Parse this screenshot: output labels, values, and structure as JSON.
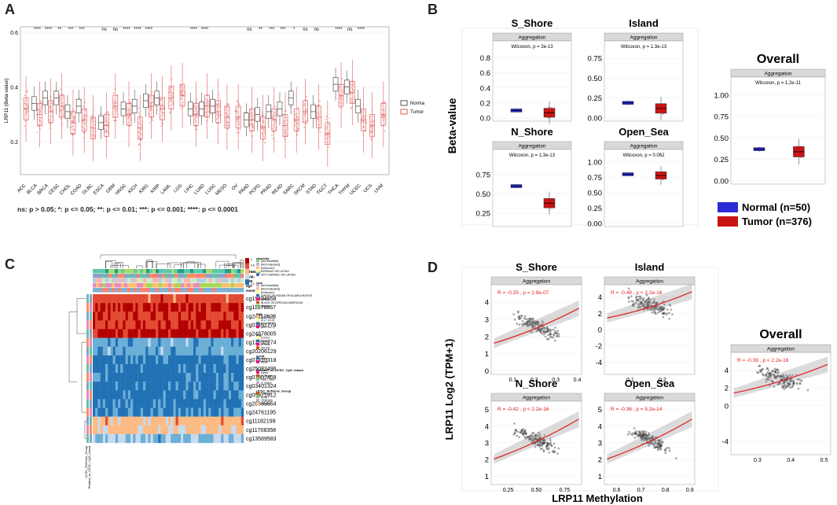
{
  "panel_labels": {
    "a": "A",
    "b": "B",
    "c": "C",
    "d": "D"
  },
  "colors": {
    "normal": "#7f8c8d",
    "tumor": "#e05a5a",
    "b_normal": "#2b2bd6",
    "b_tumor": "#c81414",
    "strip": "#d9d9d9",
    "heat_hi": "#d7301f",
    "heat_mid": "#fdd49e",
    "heat_lo": "#4575b4"
  },
  "panel_a": {
    "ylabel": "LRP11 (Beta-value)",
    "yticks": [
      "0.6",
      "0.4",
      "0.2"
    ],
    "legend": {
      "normal": "Normal",
      "tumor": "Tumor"
    },
    "footnote": "ns: p > 0.05; *: p <= 0.05; **: p <= 0.01; ***: p <= 0.001; ****: p <= 0.0001",
    "cancers": [
      "ACC",
      "BLCA",
      "BRCA",
      "CESC",
      "CHOL",
      "COAD",
      "DLBC",
      "ESCA",
      "GBM",
      "HNSC",
      "KICH",
      "KIRC",
      "KIRP",
      "LAML",
      "LGG",
      "LIHC",
      "LUAD",
      "LUSC",
      "MESO",
      "OV",
      "PAAD",
      "PCPG",
      "PRAD",
      "READ",
      "SARC",
      "SKCM",
      "STAD",
      "TGCT",
      "THCA",
      "THYM",
      "UCEC",
      "UCS",
      "UVM"
    ],
    "signif": [
      "",
      "****",
      "****",
      "**",
      "***",
      "***",
      "",
      "ns",
      "ns",
      "****",
      "****",
      "****",
      "",
      "",
      "",
      "****",
      "****",
      "",
      "",
      "",
      "ns",
      "**",
      "***",
      "***",
      "*",
      "ns",
      "ns",
      "",
      "****",
      "ns",
      "****",
      "",
      ""
    ]
  },
  "chart_data": [
    {
      "type": "box",
      "id": "A",
      "ylabel": "LRP11 (Beta-value)",
      "ylim": [
        0.08,
        0.62
      ],
      "categories": [
        "ACC",
        "BLCA",
        "BRCA",
        "CESC",
        "CHOL",
        "COAD",
        "DLBC",
        "ESCA",
        "GBM",
        "HNSC",
        "KICH",
        "KIRC",
        "KIRP",
        "LAML",
        "LGG",
        "LIHC",
        "LUAD",
        "LUSC",
        "MESO",
        "OV",
        "PAAD",
        "PCPG",
        "PRAD",
        "READ",
        "SARC",
        "SKCM",
        "STAD",
        "TGCT",
        "THCA",
        "THYM",
        "UCEC",
        "UCS",
        "UVM"
      ],
      "series": [
        {
          "name": "Normal",
          "medians": [
            null,
            0.34,
            0.36,
            0.36,
            0.31,
            0.33,
            null,
            0.27,
            null,
            0.32,
            0.33,
            0.35,
            0.36,
            null,
            null,
            0.32,
            0.32,
            0.33,
            null,
            null,
            0.28,
            0.3,
            0.31,
            0.32,
            0.36,
            null,
            0.31,
            null,
            0.41,
            0.4,
            0.33,
            null,
            null
          ]
        },
        {
          "name": "Tumor",
          "medians": [
            0.32,
            0.3,
            0.31,
            0.33,
            0.27,
            0.28,
            0.25,
            0.26,
            0.33,
            0.3,
            0.25,
            0.33,
            0.32,
            0.36,
            0.37,
            0.3,
            0.33,
            0.31,
            0.29,
            0.29,
            0.28,
            0.25,
            0.28,
            0.26,
            0.28,
            0.31,
            0.29,
            0.23,
            0.37,
            0.38,
            0.28,
            0.26,
            0.3
          ]
        }
      ]
    },
    {
      "type": "box",
      "id": "B-S_Shore",
      "title": "S_Shore",
      "strip": "Aggregation",
      "stat": "Wilcoxon, p = 3e-13",
      "categories": [
        "Normal",
        "Tumor"
      ],
      "medians": [
        0.1,
        0.07
      ],
      "ylim": [
        0,
        0.9
      ],
      "yticks": [
        "0.8",
        "0.6",
        "0.4",
        "0.2",
        "0.0"
      ]
    },
    {
      "type": "box",
      "id": "B-Island",
      "title": "Island",
      "strip": "Aggregation",
      "stat": "Wilcoxon, p = 1.3e-13",
      "categories": [
        "Normal",
        "Tumor"
      ],
      "medians": [
        0.19,
        0.12
      ],
      "ylim": [
        0,
        0.85
      ],
      "yticks": [
        "0.75",
        "0.50",
        "0.25",
        "0.00"
      ]
    },
    {
      "type": "box",
      "id": "B-N_Shore",
      "title": "N_Shore",
      "strip": "Aggregation",
      "stat": "Wilcoxon, p = 1.3e-13",
      "categories": [
        "Normal",
        "Tumor"
      ],
      "medians": [
        0.6,
        0.38
      ],
      "ylim": [
        0.12,
        0.95
      ],
      "yticks": [
        "0.75",
        "0.50",
        "0.25"
      ]
    },
    {
      "type": "box",
      "id": "B-Open_Sea",
      "title": "Open_Sea",
      "strip": "Aggregation",
      "stat": "Wilcoxon, p = 0.062",
      "categories": [
        "Normal",
        "Tumor"
      ],
      "medians": [
        0.8,
        0.78
      ],
      "ylim": [
        0,
        1.05
      ],
      "yticks": [
        "1.00",
        "0.75",
        "0.50",
        "0.25",
        "0.00"
      ]
    },
    {
      "type": "box",
      "id": "B-Overall",
      "title": "Overall",
      "strip": "Aggregation",
      "stat": "Wilcoxon, p = 1.2e-11",
      "categories": [
        "Normal",
        "Tumor"
      ],
      "medians": [
        0.37,
        0.34
      ],
      "ylim": [
        0,
        1.1
      ],
      "yticks": [
        "1.00",
        "0.75",
        "0.50",
        "0.25",
        "0.00"
      ]
    },
    {
      "type": "scatter",
      "id": "D-S_Shore",
      "title": "S_Shore",
      "strip": "Aggregation",
      "stat": "R = -0.25 , p = 2.9e-07",
      "xticks": [
        "0.1",
        "0.2",
        "0.3",
        "0.4"
      ],
      "xlim": [
        0.0,
        0.42
      ],
      "yticks": [
        "4",
        "3",
        "2",
        "1",
        "0"
      ],
      "ylim": [
        -0.2,
        5
      ]
    },
    {
      "type": "scatter",
      "id": "D-Island",
      "title": "Island",
      "strip": "Aggregation",
      "stat": "R = -0.49 , p < 2.2e-16",
      "xticks": [
        "0.1",
        "0.2"
      ],
      "xlim": [
        0.02,
        0.3
      ],
      "yticks": [
        "4",
        "2",
        "0",
        "-2",
        "-4"
      ],
      "ylim": [
        -5.5,
        5.5
      ]
    },
    {
      "type": "scatter",
      "id": "D-N_Shore",
      "title": "N_Shore",
      "strip": "Aggregation",
      "stat": "R = -0.42 , p < 2.2e-16",
      "xticks": [
        "0.25",
        "0.50",
        "0.75"
      ],
      "xlim": [
        0.1,
        0.9
      ],
      "yticks": [
        "5",
        "4",
        "3",
        "2",
        "1"
      ],
      "ylim": [
        0.5,
        5.5
      ]
    },
    {
      "type": "scatter",
      "id": "D-Open_Sea",
      "title": "Open_Sea",
      "strip": "Aggregation",
      "stat": "R = -0.36 , p = 5.2e-14",
      "xticks": [
        "0.6",
        "0.7",
        "0.8",
        "0.9"
      ],
      "xlim": [
        0.55,
        0.92
      ],
      "yticks": [
        "5",
        "4",
        "3",
        "2",
        "1"
      ],
      "ylim": [
        0.5,
        5.5
      ]
    },
    {
      "type": "scatter",
      "id": "D-Overall",
      "title": "Overall",
      "strip": "Aggregation",
      "stat": "R = -0.39 , p < 2.2e-16",
      "xticks": [
        "0.3",
        "0.4",
        "0.5"
      ],
      "xlim": [
        0.22,
        0.52
      ],
      "yticks": [
        "4",
        "2",
        "0",
        "-4"
      ],
      "ylim": [
        -5.5,
        6
      ]
    }
  ],
  "panel_b": {
    "ylabel": "Beta-value",
    "legend": [
      {
        "label": "Normal (n=50)",
        "key": "normal"
      },
      {
        "label": "Tumor (n=376)",
        "key": "tumor"
      }
    ]
  },
  "panel_d": {
    "ylabel": "LRP11 Log2 (TPM+1)",
    "xlabel": "LRP11 Methylation"
  },
  "panel_c": {
    "annot_rows": [
      "ethnicity",
      "race",
      "BMI",
      "age",
      "event"
    ],
    "probes": [
      "cg15494558",
      "cg11878867",
      "cg24112628",
      "cg03451779",
      "cg24878005",
      "cg12232274",
      "cg20206129",
      "cg07310318",
      "cg25083496",
      "cg07807409",
      "cg03401324",
      "cg05971912",
      "cg20685554",
      "cg24761195",
      "cg11182199",
      "cg11708358",
      "cg13569583"
    ],
    "scale_ticks": [
      "1",
      "0.8",
      "0.6",
      "0.4",
      "0.2"
    ],
    "side_labels": [
      "UCSC_RefGene_Group",
      "Relation_to_UCSC_CpG_Island"
    ],
    "legend_groups": [
      {
        "title": "ethnicity",
        "items": [
          "[Not Available]",
          "[Not Evaluated]",
          "[Unknown]",
          "HISPANIC OR LATINO",
          "NOT HISPANIC OR LATINO"
        ]
      },
      {
        "title": "race",
        "items": [
          "[Not Available]",
          "[Not Evaluated]",
          "[Unknown]",
          "AMERICAN INDIAN OR ALASKA NATIVE",
          "ASIAN",
          "BLACK OR AFRICAN AMERICAN",
          "WHITE"
        ]
      },
      {
        "title": "BMI",
        "items": [
          "(14.5,21.7]",
          "(21.7,24.4]",
          "(24.4,28.7]",
          "(28.7,61.7]"
        ]
      },
      {
        "title": "age",
        "items": [
          "(14,51]",
          "(51,61]",
          "(61,69]",
          "(69,90]"
        ]
      },
      {
        "title": "event",
        "items": [
          "Alive",
          "Dead"
        ]
      },
      {
        "title": "Relation_to_UCSC_CpG_Island",
        "items": [
          "Island",
          "N_Shore",
          "Open_Sea",
          "S_Shore"
        ]
      },
      {
        "title": "UCSC_RefGene_Group",
        "items": [
          "1stExon",
          "Body",
          "TSS1500",
          "TSS200"
        ]
      }
    ]
  }
}
